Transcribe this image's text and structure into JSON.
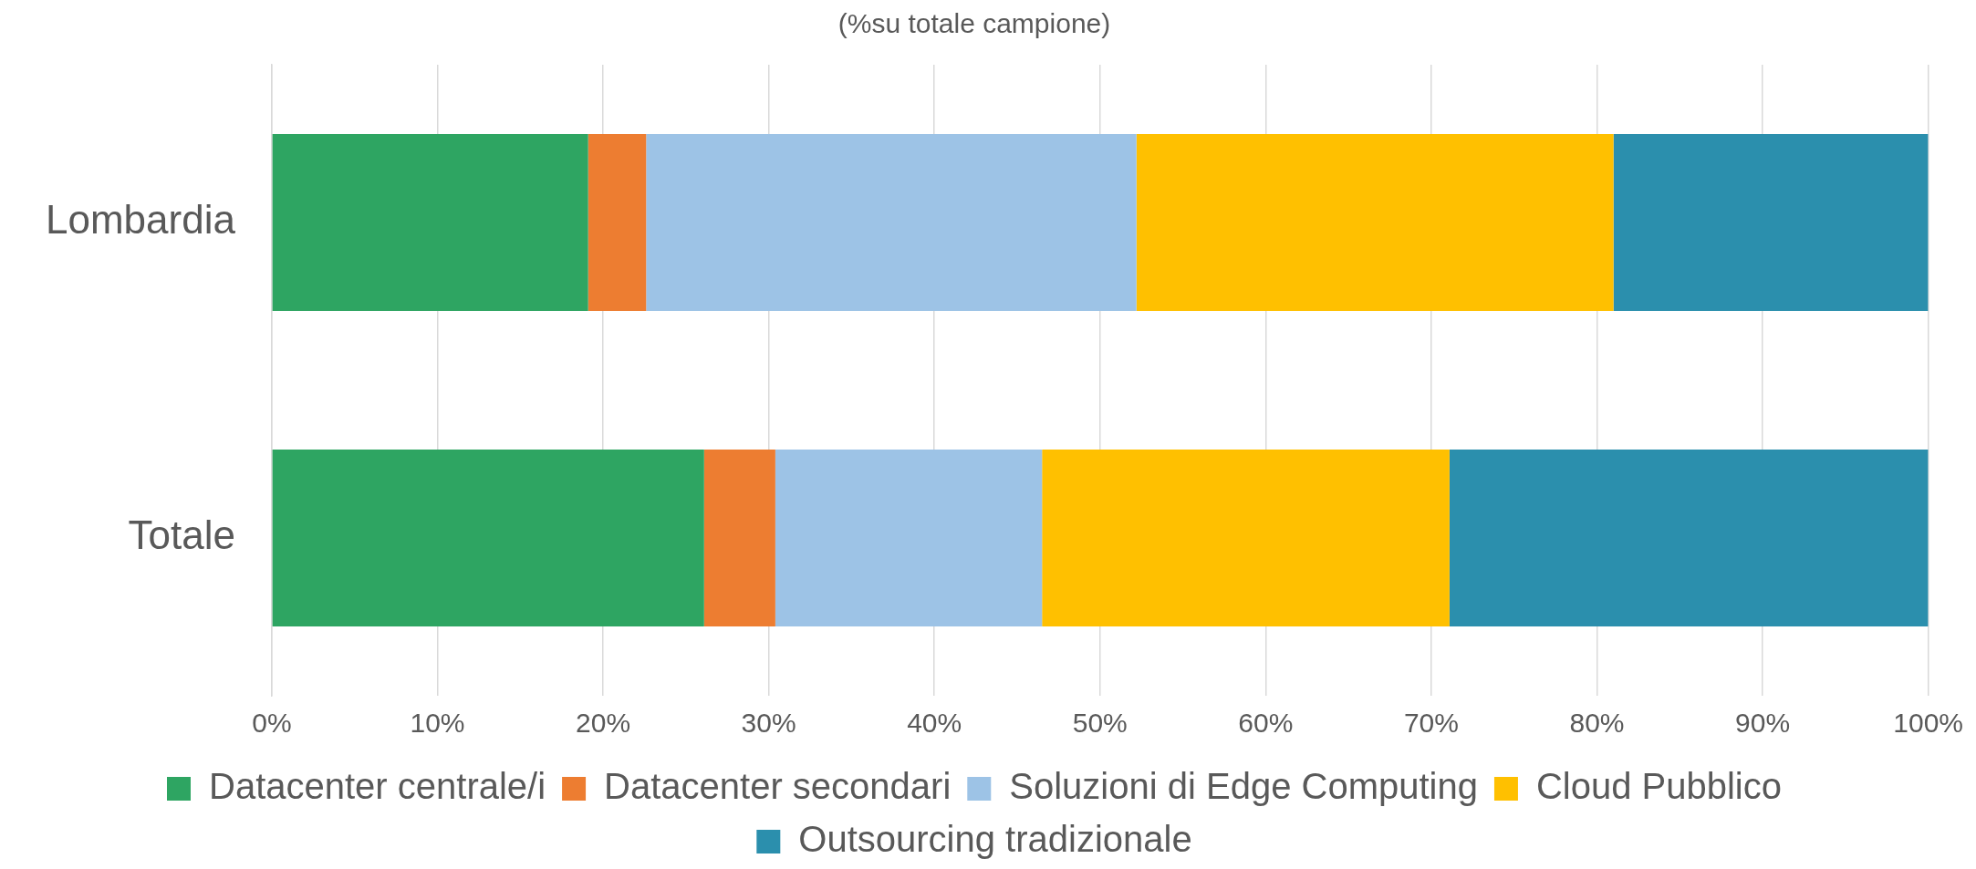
{
  "chart_data": {
    "type": "bar",
    "orientation": "horizontal",
    "stacked": true,
    "title": "(%su totale campione)",
    "categories": [
      "Lombardia",
      "Totale"
    ],
    "series": [
      {
        "name": "Datacenter centrale/i",
        "color": "#2ea562",
        "values": [
          19.1,
          26.1
        ]
      },
      {
        "name": "Datacenter secondari",
        "color": "#ed7d31",
        "values": [
          3.5,
          4.3
        ]
      },
      {
        "name": "Soluzioni di Edge Computing",
        "color": "#9dc3e6",
        "values": [
          29.6,
          16.1
        ]
      },
      {
        "name": "Cloud Pubblico",
        "color": "#ffc000",
        "values": [
          28.8,
          24.6
        ]
      },
      {
        "name": "Outsourcing tradizionale",
        "color": "#2b8fad",
        "values": [
          19.0,
          28.9
        ]
      }
    ],
    "xlim": [
      0,
      100
    ],
    "xticks": [
      {
        "value": 0,
        "label": "0%"
      },
      {
        "value": 10,
        "label": "10%"
      },
      {
        "value": 20,
        "label": "20%"
      },
      {
        "value": 30,
        "label": "30%"
      },
      {
        "value": 40,
        "label": "40%"
      },
      {
        "value": 50,
        "label": "50%"
      },
      {
        "value": 60,
        "label": "60%"
      },
      {
        "value": 70,
        "label": "70%"
      },
      {
        "value": 80,
        "label": "80%"
      },
      {
        "value": 90,
        "label": "90%"
      },
      {
        "value": 100,
        "label": "100%"
      }
    ],
    "grid": "x",
    "legend": "bottom"
  }
}
